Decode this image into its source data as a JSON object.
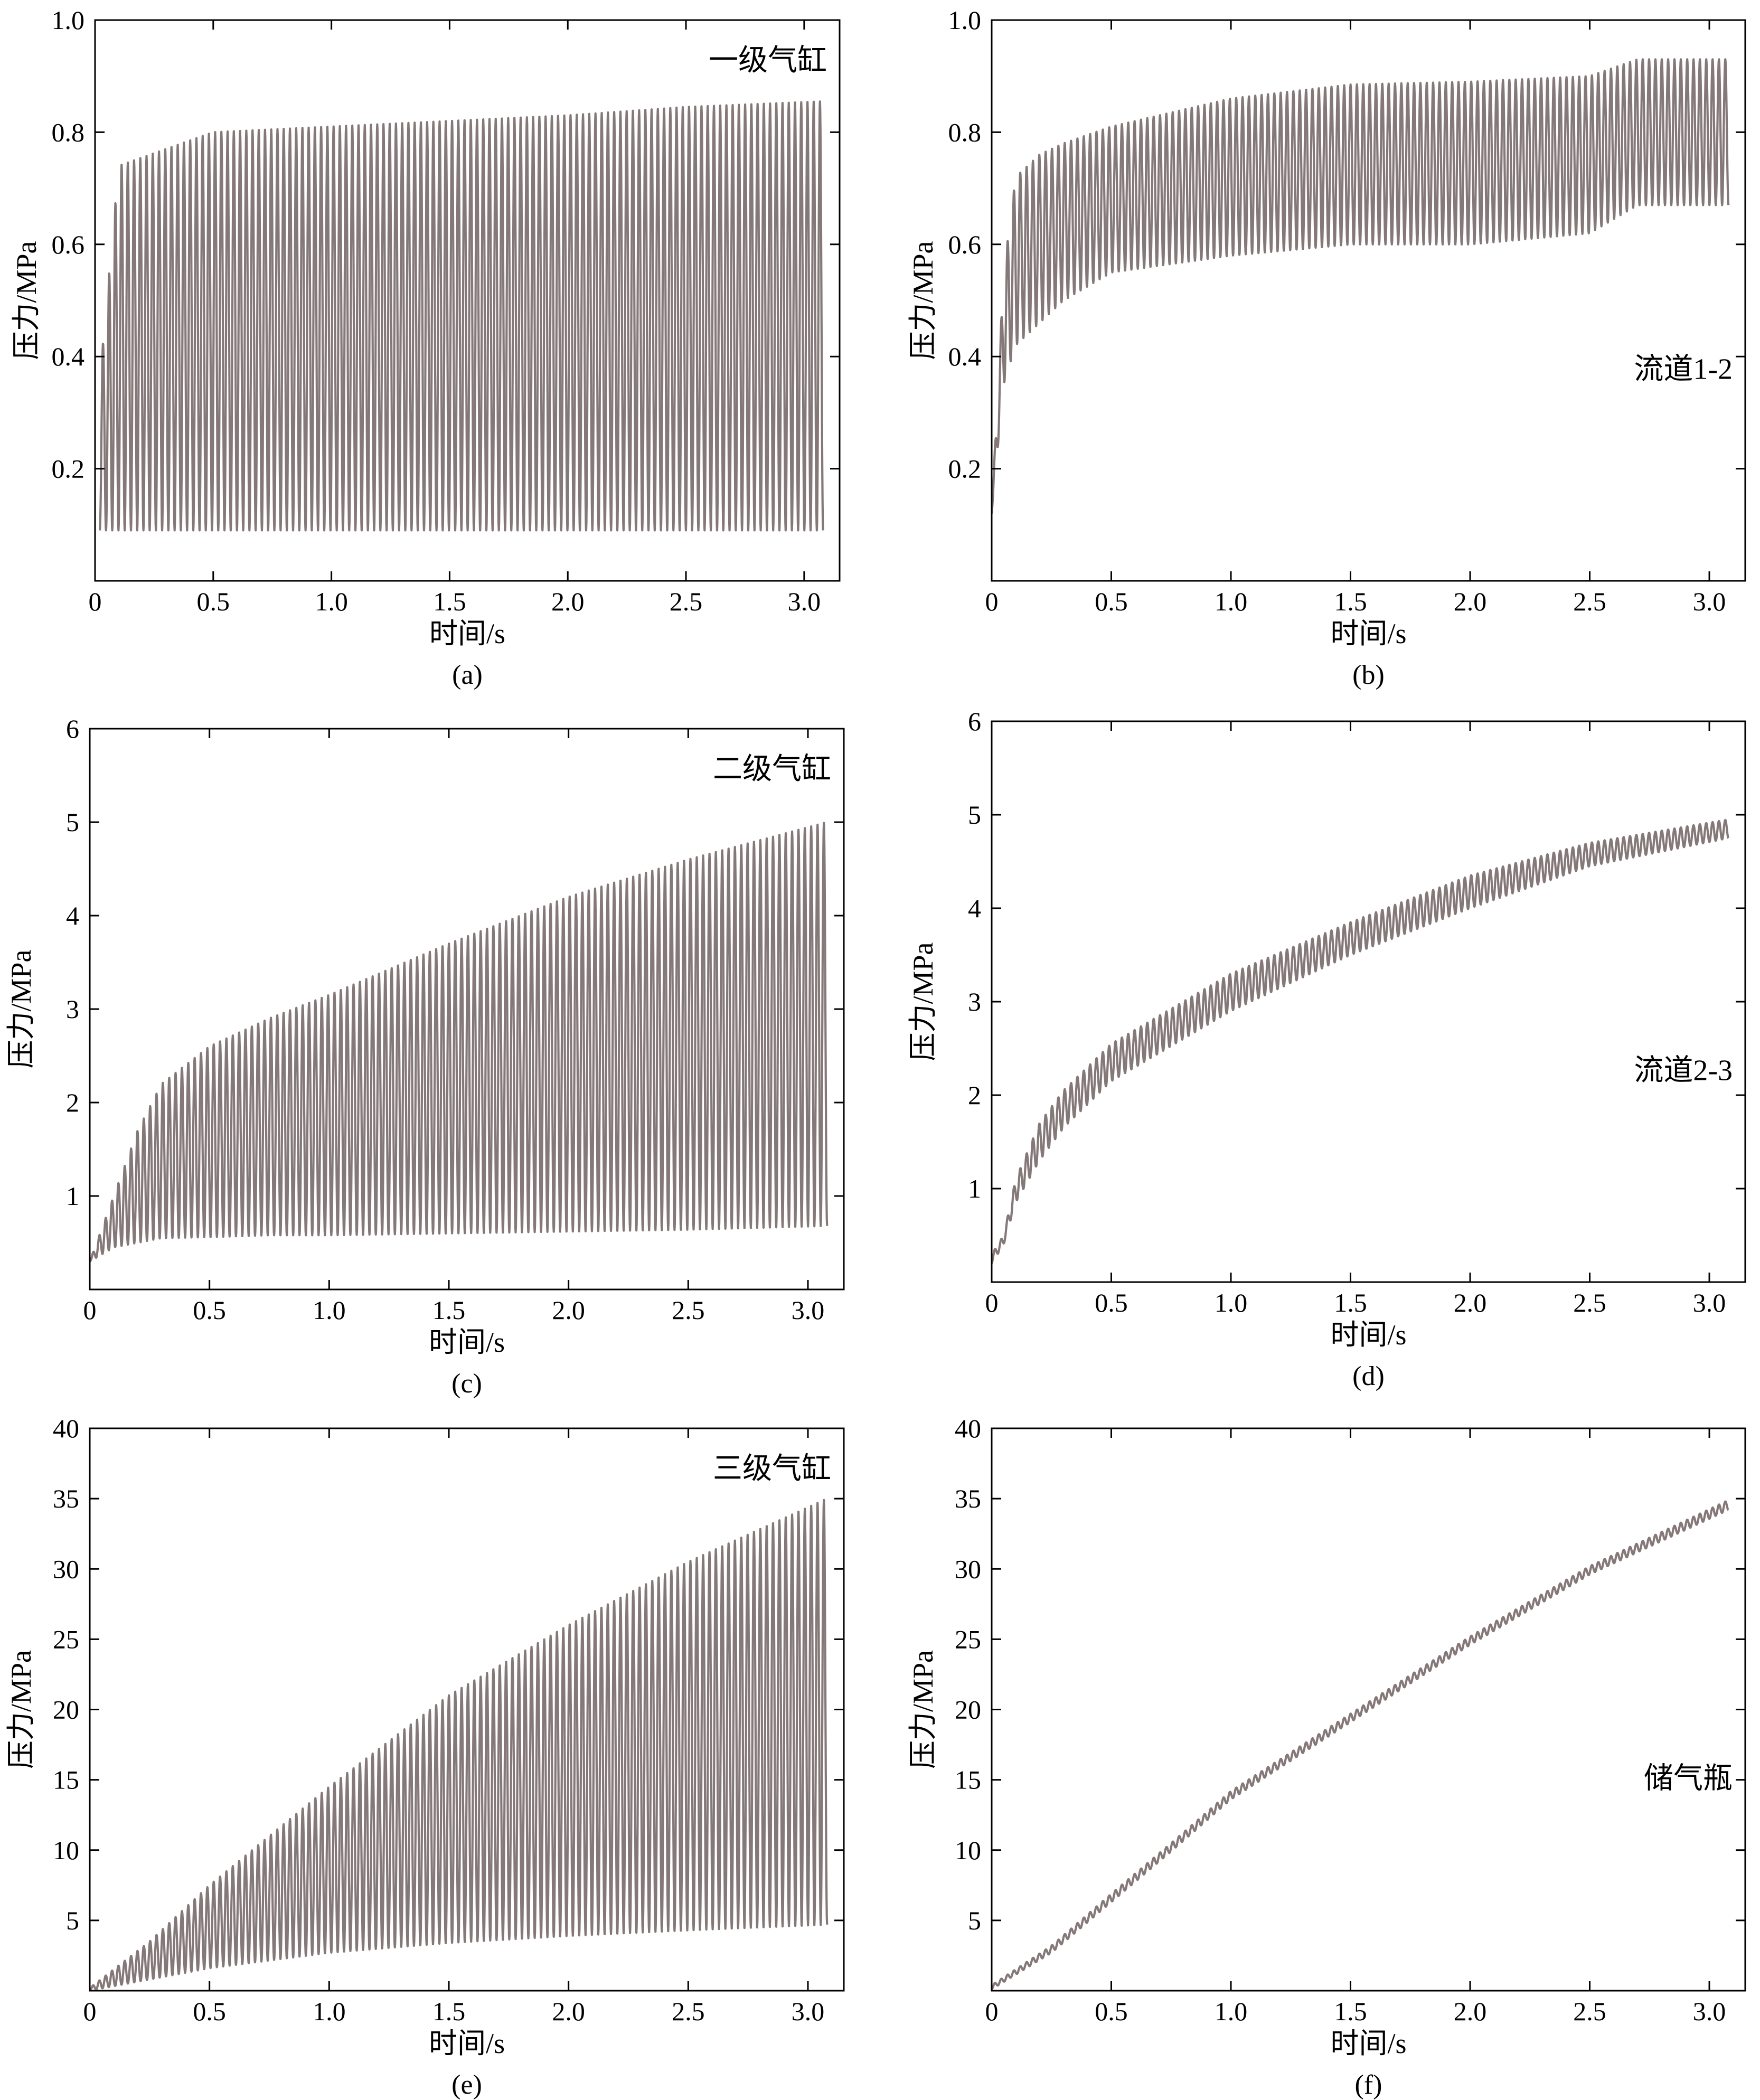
{
  "figure": {
    "line_color": "#857878",
    "axis_color": "#000000",
    "panels": [
      {
        "id": "a",
        "caption": "(a)",
        "annotation": "一级气缸",
        "annotation_pos": "top-right",
        "chart_data": {
          "type": "line",
          "title": "",
          "xlabel": "时间/s",
          "ylabel": "压力/MPa",
          "xlim": [
            0,
            3.15
          ],
          "ylim": [
            0,
            1.0
          ],
          "xticks": [
            "0",
            "0.5",
            "1.0",
            "1.5",
            "2.0",
            "2.5",
            "3.0"
          ],
          "xtick_values": [
            0,
            0.5,
            1.0,
            1.5,
            2.0,
            2.5,
            3.0
          ],
          "yticks": [
            "0.2",
            "0.4",
            "0.6",
            "0.8",
            "1.0"
          ],
          "ytick_values": [
            0.2,
            0.4,
            0.6,
            0.8,
            1.0
          ],
          "oscillation": {
            "t_start": 0.02,
            "t_end": 3.08,
            "cycles": 116,
            "t": [
              0.02,
              0.1,
              0.3,
              0.5,
              1.0,
              1.5,
              2.0,
              2.5,
              3.08
            ],
            "upper": [
              0.36,
              0.74,
              0.77,
              0.8,
              0.81,
              0.82,
              0.83,
              0.845,
              0.855
            ],
            "lower": [
              0.09,
              0.09,
              0.09,
              0.09,
              0.09,
              0.09,
              0.09,
              0.09,
              0.09
            ]
          }
        }
      },
      {
        "id": "b",
        "caption": "(b)",
        "annotation": "流道1-2",
        "annotation_pos": "right",
        "chart_data": {
          "type": "line",
          "title": "",
          "xlabel": "时间/s",
          "ylabel": "压力/MPa",
          "xlim": [
            0,
            3.15
          ],
          "ylim": [
            0,
            1.0
          ],
          "xticks": [
            "0",
            "0.5",
            "1.0",
            "1.5",
            "2.0",
            "2.5",
            "3.0"
          ],
          "xtick_values": [
            0,
            0.5,
            1.0,
            1.5,
            2.0,
            2.5,
            3.0
          ],
          "yticks": [
            "0.2",
            "0.4",
            "0.6",
            "0.8",
            "1.0"
          ],
          "ytick_values": [
            0.2,
            0.4,
            0.6,
            0.8,
            1.0
          ],
          "oscillation": {
            "t_start": 0.0,
            "t_end": 3.08,
            "cycles": 116,
            "t": [
              0.0,
              0.05,
              0.1,
              0.2,
              0.3,
              0.5,
              1.0,
              1.5,
              2.0,
              2.5,
              2.7,
              3.08
            ],
            "upper": [
              0.12,
              0.55,
              0.72,
              0.76,
              0.78,
              0.81,
              0.86,
              0.885,
              0.89,
              0.9,
              0.93,
              0.93
            ],
            "lower": [
              0.12,
              0.35,
              0.42,
              0.46,
              0.5,
              0.55,
              0.58,
              0.6,
              0.6,
              0.62,
              0.67,
              0.67
            ]
          }
        }
      },
      {
        "id": "c",
        "caption": "(c)",
        "annotation": "二级气缸",
        "annotation_pos": "top-right",
        "chart_data": {
          "type": "line",
          "title": "",
          "xlabel": "时间/s",
          "ylabel": "压力/MPa",
          "xlim": [
            0,
            3.15
          ],
          "ylim": [
            0,
            6
          ],
          "xticks": [
            "0",
            "0.5",
            "1.0",
            "1.5",
            "2.0",
            "2.5",
            "3.0"
          ],
          "xtick_values": [
            0,
            0.5,
            1.0,
            1.5,
            2.0,
            2.5,
            3.0
          ],
          "yticks": [
            "1",
            "2",
            "3",
            "4",
            "5",
            "6"
          ],
          "ytick_values": [
            1,
            2,
            3,
            4,
            5,
            6
          ],
          "oscillation": {
            "t_start": 0.0,
            "t_end": 3.08,
            "cycles": 116,
            "t": [
              0.0,
              0.1,
              0.2,
              0.3,
              0.5,
              0.75,
              1.0,
              1.5,
              2.0,
              2.5,
              3.08
            ],
            "upper": [
              0.3,
              1.0,
              1.7,
              2.2,
              2.6,
              2.9,
              3.15,
              3.7,
              4.2,
              4.6,
              5.0
            ],
            "lower": [
              0.3,
              0.45,
              0.5,
              0.55,
              0.56,
              0.58,
              0.58,
              0.6,
              0.62,
              0.64,
              0.68
            ]
          }
        }
      },
      {
        "id": "d",
        "caption": "(d)",
        "annotation": "流道2-3",
        "annotation_pos": "right",
        "chart_data": {
          "type": "line",
          "title": "",
          "xlabel": "时间/s",
          "ylabel": "压力/MPa",
          "xlim": [
            0,
            3.15
          ],
          "ylim": [
            0,
            6
          ],
          "xticks": [
            "0",
            "0.5",
            "1.0",
            "1.5",
            "2.0",
            "2.5",
            "3.0"
          ],
          "xtick_values": [
            0,
            0.5,
            1.0,
            1.5,
            2.0,
            2.5,
            3.0
          ],
          "yticks": [
            "1",
            "2",
            "3",
            "4",
            "5",
            "6"
          ],
          "ytick_values": [
            1,
            2,
            3,
            4,
            5,
            6
          ],
          "oscillation": {
            "t_start": 0.0,
            "t_end": 3.08,
            "cycles": 116,
            "t": [
              0.0,
              0.05,
              0.1,
              0.2,
              0.3,
              0.5,
              1.0,
              1.5,
              2.0,
              2.5,
              3.08
            ],
            "upper": [
              0.3,
              0.5,
              1.1,
              1.7,
              2.05,
              2.55,
              3.3,
              3.85,
              4.35,
              4.7,
              4.95
            ],
            "lower": [
              0.2,
              0.4,
              0.85,
              1.3,
              1.65,
              2.15,
              2.9,
              3.5,
              4.0,
              4.45,
              4.75
            ]
          }
        }
      },
      {
        "id": "e",
        "caption": "(e)",
        "annotation": "三级气缸",
        "annotation_pos": "top-right",
        "chart_data": {
          "type": "line",
          "title": "",
          "xlabel": "时间/s",
          "ylabel": "压力/MPa",
          "xlim": [
            0,
            3.15
          ],
          "ylim": [
            0,
            40
          ],
          "xticks": [
            "0",
            "0.5",
            "1.0",
            "1.5",
            "2.0",
            "2.5",
            "3.0"
          ],
          "xtick_values": [
            0,
            0.5,
            1.0,
            1.5,
            2.0,
            2.5,
            3.0
          ],
          "yticks": [
            "5",
            "10",
            "15",
            "20",
            "25",
            "30",
            "35",
            "40"
          ],
          "ytick_values": [
            5,
            10,
            15,
            20,
            25,
            30,
            35,
            40
          ],
          "oscillation": {
            "t_start": 0.0,
            "t_end": 3.08,
            "cycles": 116,
            "t": [
              0.0,
              0.25,
              0.5,
              1.0,
              1.5,
              2.0,
              2.5,
              3.08
            ],
            "upper": [
              0.2,
              3.5,
              7.5,
              14.5,
              21.0,
              26.0,
              30.5,
              35.0
            ],
            "lower": [
              0.0,
              0.8,
              1.6,
              2.7,
              3.4,
              3.9,
              4.3,
              4.7
            ]
          }
        }
      },
      {
        "id": "f",
        "caption": "(f)",
        "annotation": "储气瓶",
        "annotation_pos": "right",
        "chart_data": {
          "type": "line",
          "title": "",
          "xlabel": "时间/s",
          "ylabel": "压力/MPa",
          "xlim": [
            0,
            3.15
          ],
          "ylim": [
            0,
            40
          ],
          "xticks": [
            "0",
            "0.5",
            "1.0",
            "1.5",
            "2.0",
            "2.5",
            "3.0"
          ],
          "xtick_values": [
            0,
            0.5,
            1.0,
            1.5,
            2.0,
            2.5,
            3.0
          ],
          "yticks": [
            "5",
            "10",
            "15",
            "20",
            "25",
            "30",
            "35",
            "40"
          ],
          "ytick_values": [
            5,
            10,
            15,
            20,
            25,
            30,
            35,
            40
          ],
          "oscillation": {
            "t_start": 0.0,
            "t_end": 3.08,
            "cycles": 116,
            "t": [
              0.0,
              0.25,
              0.5,
              0.75,
              1.0,
              1.5,
              2.0,
              2.5,
              3.08
            ],
            "upper": [
              0.4,
              3.2,
              6.9,
              10.5,
              14.2,
              19.7,
              25.2,
              30.2,
              34.9
            ],
            "lower": [
              0.1,
              2.7,
              6.3,
              9.9,
              13.6,
              19.1,
              24.6,
              29.6,
              34.2
            ]
          }
        }
      }
    ]
  }
}
